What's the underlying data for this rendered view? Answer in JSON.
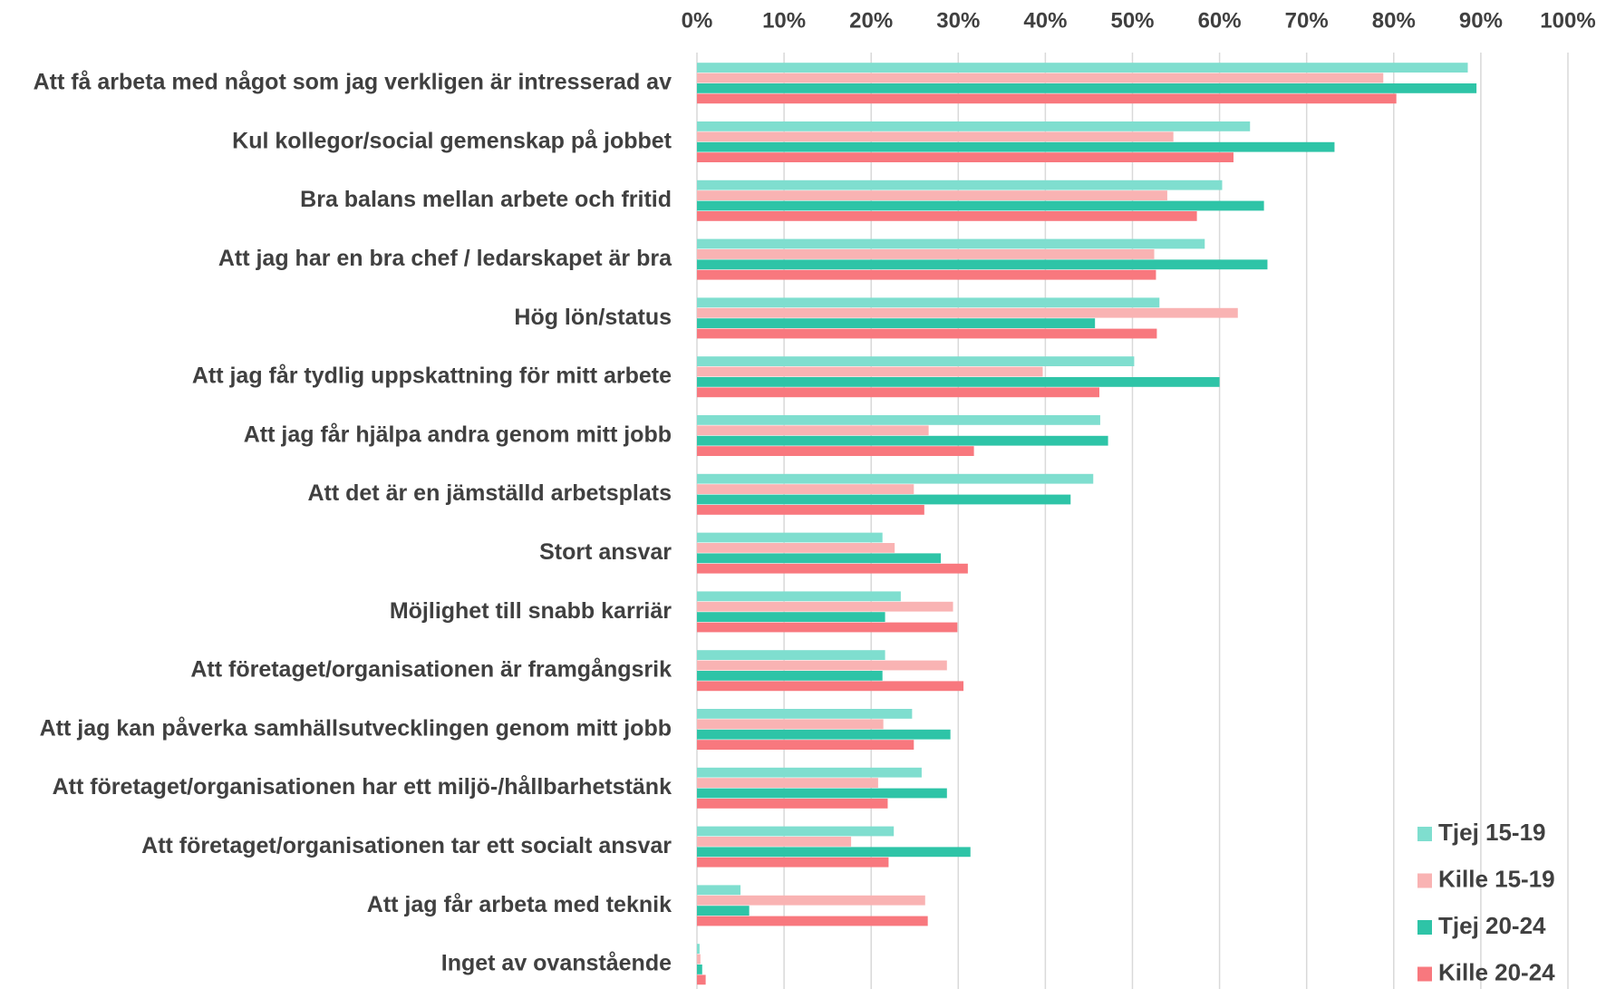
{
  "chart_data": {
    "type": "hbar",
    "categories": [
      "Att få arbeta med något som jag verkligen är intresserad av",
      "Kul kollegor/social gemenskap på jobbet",
      "Bra balans mellan arbete och fritid",
      "Att jag har en bra chef / ledarskapet är bra",
      "Hög lön/status",
      "Att jag får tydlig uppskattning för mitt arbete",
      "Att jag får hjälpa andra genom mitt jobb",
      "Att det är en jämställd arbetsplats",
      "Stort ansvar",
      "Möjlighet till snabb karriär",
      "Att företaget/organisationen är framgångsrik",
      "Att jag kan påverka samhällsutvecklingen genom mitt jobb",
      "Att företaget/organisationen har ett miljö-/hållbarhetstänk",
      "Att företaget/organisationen tar ett socialt ansvar",
      "Att jag får arbeta med teknik",
      "Inget av ovanstående"
    ],
    "series": [
      {
        "name": "Tjej 15-19",
        "color": "#7fdecf",
        "values": [
          88.5,
          63.5,
          60.3,
          58.3,
          53.1,
          50.2,
          46.3,
          45.5,
          21.3,
          23.4,
          21.6,
          24.7,
          25.8,
          22.6,
          5.0,
          0.3
        ]
      },
      {
        "name": "Kille 15-19",
        "color": "#f9b3b3",
        "values": [
          78.8,
          54.7,
          54.0,
          52.5,
          62.1,
          39.7,
          26.6,
          24.9,
          22.7,
          29.4,
          28.7,
          21.4,
          20.8,
          17.7,
          26.2,
          0.4
        ]
      },
      {
        "name": "Tjej 20-24",
        "color": "#2ec4a7",
        "values": [
          89.5,
          73.2,
          65.1,
          65.5,
          45.7,
          60.0,
          47.2,
          42.9,
          28.0,
          21.6,
          21.3,
          29.1,
          28.7,
          31.4,
          6.0,
          0.6
        ]
      },
      {
        "name": "Kille 20-24",
        "color": "#f8787e",
        "values": [
          80.3,
          61.6,
          57.4,
          52.7,
          52.8,
          46.2,
          31.8,
          26.1,
          31.1,
          29.9,
          30.6,
          24.9,
          21.9,
          22.0,
          26.5,
          1.0
        ]
      }
    ],
    "xlim": [
      0,
      100
    ],
    "xticks": [
      {
        "value": 0,
        "label": "0%"
      },
      {
        "value": 10,
        "label": "10%"
      },
      {
        "value": 20,
        "label": "20%"
      },
      {
        "value": 30,
        "label": "30%"
      },
      {
        "value": 40,
        "label": "40%"
      },
      {
        "value": 50,
        "label": "50%"
      },
      {
        "value": 60,
        "label": "60%"
      },
      {
        "value": 70,
        "label": "70%"
      },
      {
        "value": 80,
        "label": "80%"
      },
      {
        "value": 90,
        "label": "90%"
      },
      {
        "value": 100,
        "label": "100%"
      }
    ],
    "grid": true,
    "legend": "bottom-right"
  }
}
